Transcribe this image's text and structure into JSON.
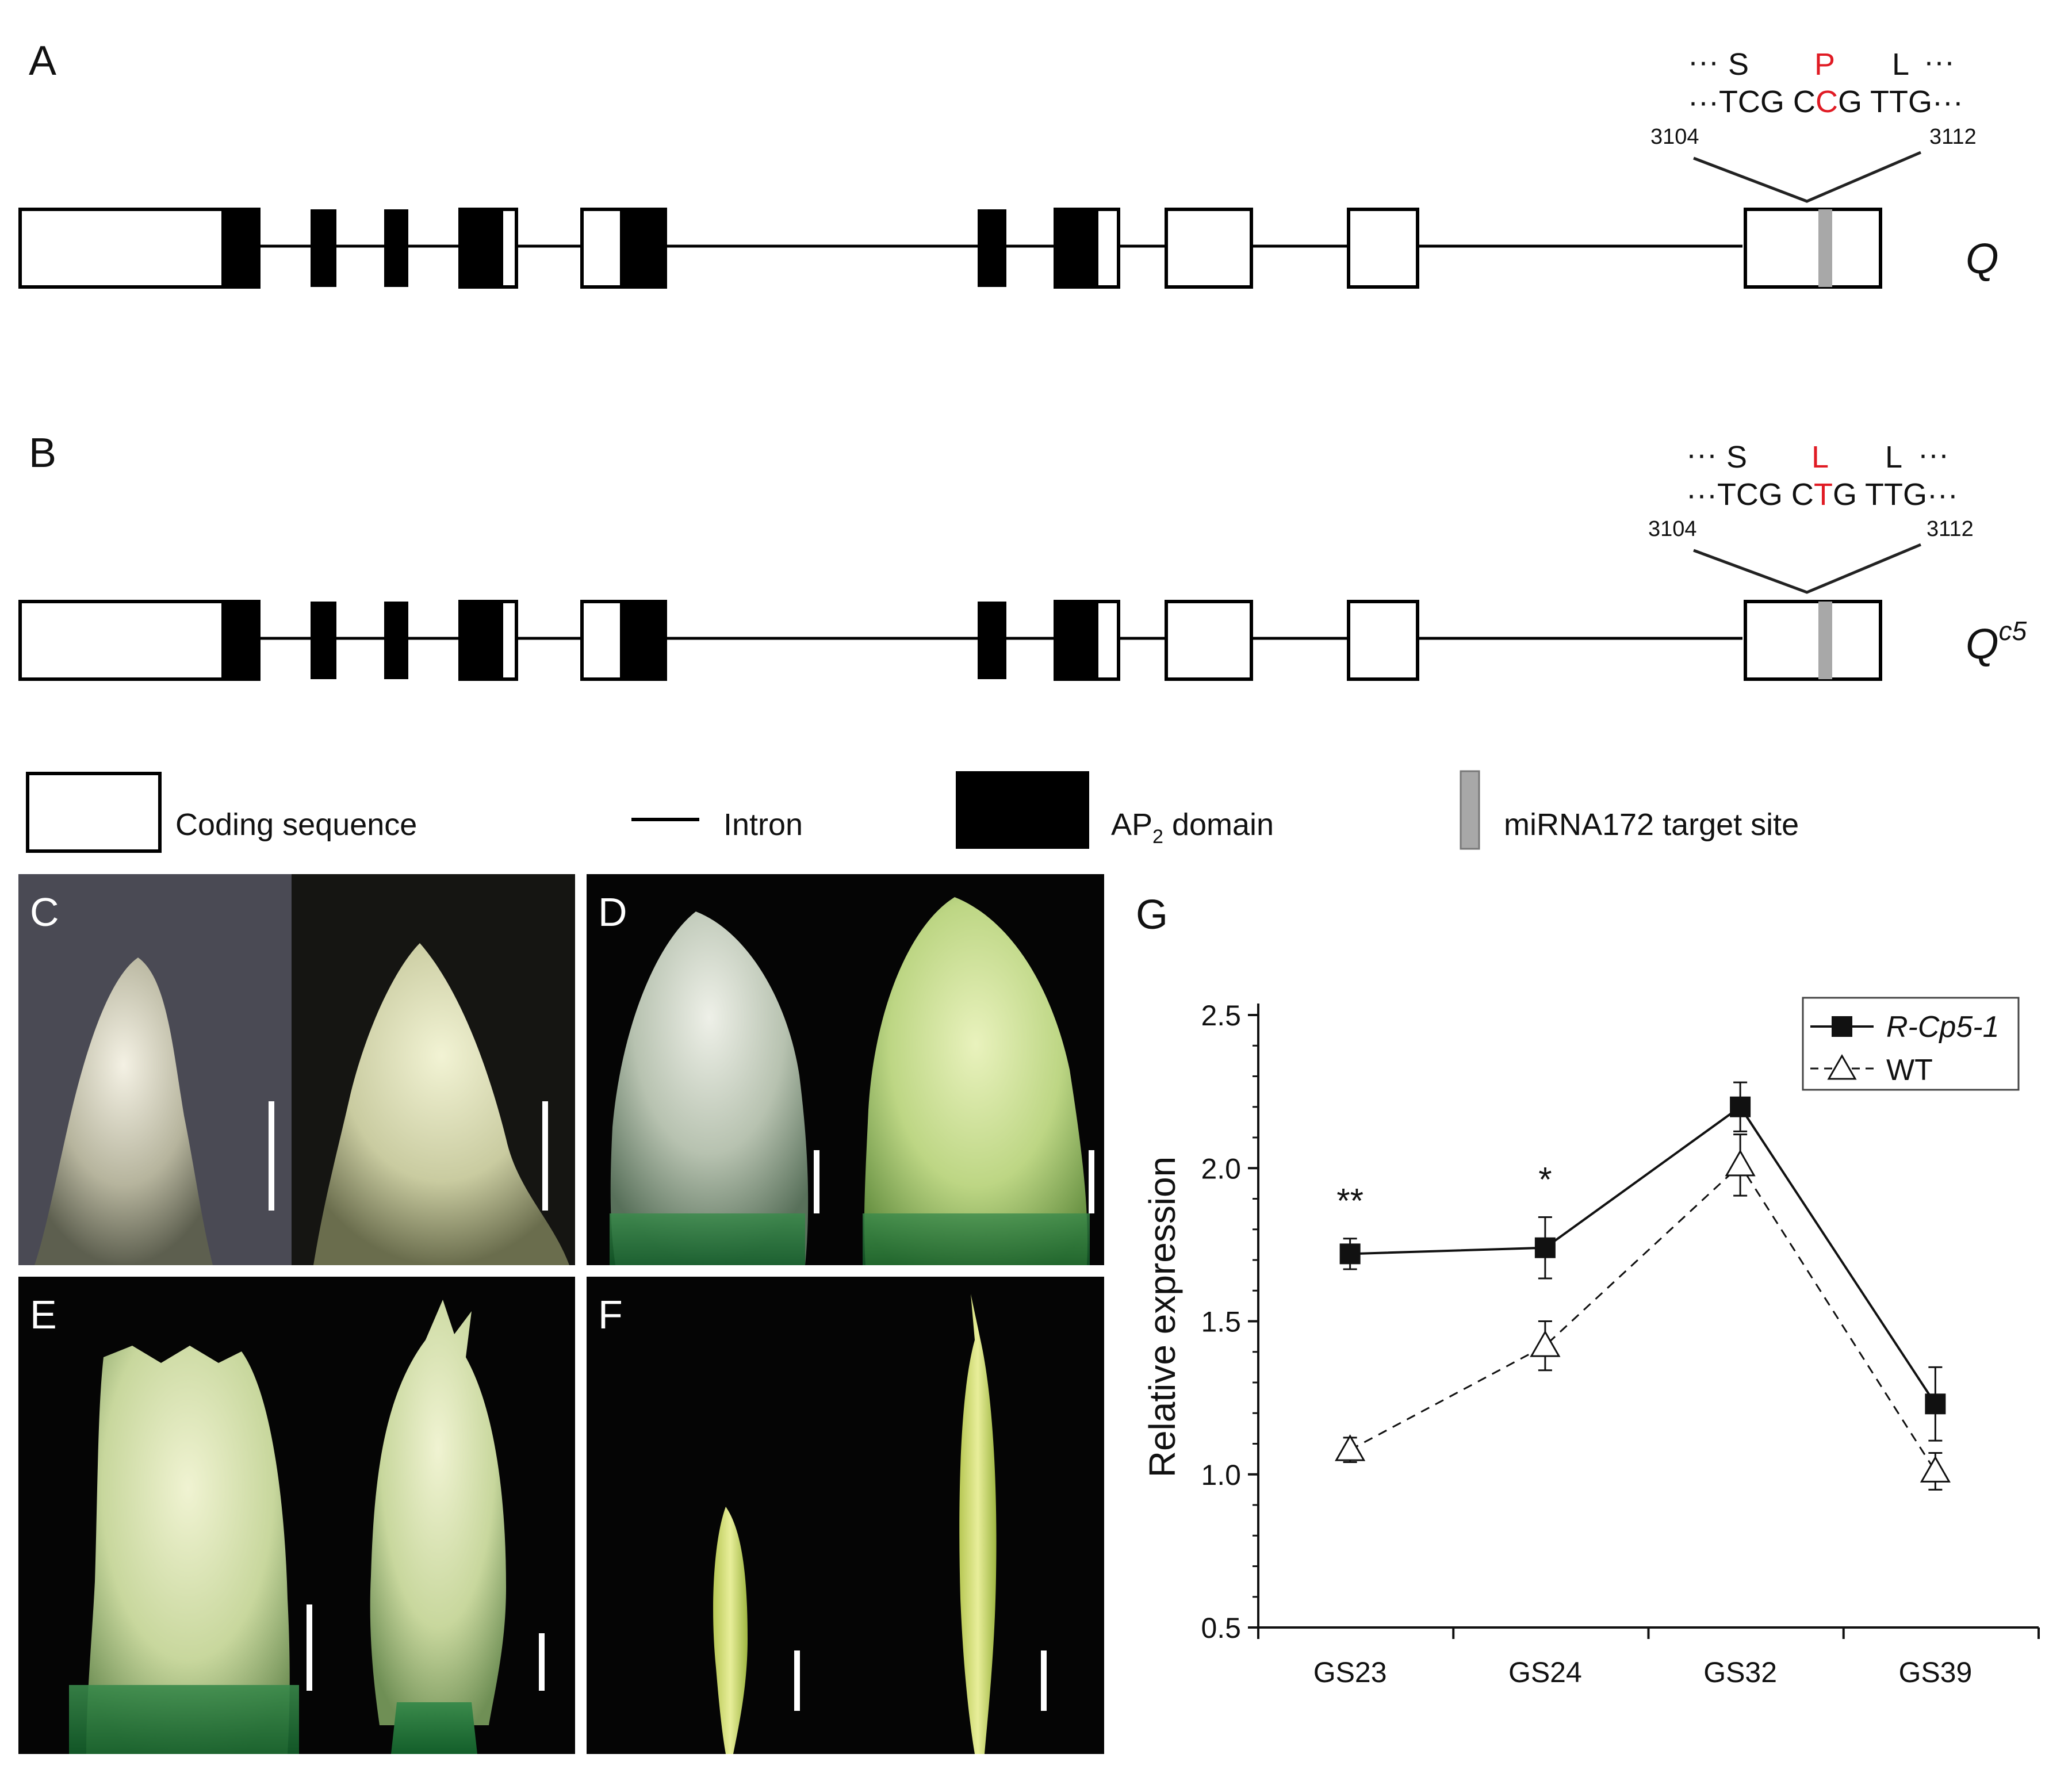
{
  "panels": {
    "A": {
      "label": "A",
      "gene_label": "Q",
      "aa": {
        "left": "···",
        "s": "S",
        "mut": "P",
        "l": "L",
        "right": "···"
      },
      "seq": {
        "lead": "···TCG C",
        "mut": "C",
        "trail": "G TTG···"
      },
      "pos_start": "3104",
      "pos_end": "3112"
    },
    "B": {
      "label": "B",
      "gene_label": "Q",
      "gene_sup": "c5",
      "aa": {
        "left": "···",
        "s": "S",
        "mut": "L",
        "l": "L",
        "right": "···"
      },
      "seq": {
        "lead": "···TCG C",
        "mut": "T",
        "trail": "G TTG···"
      },
      "pos_start": "3104",
      "pos_end": "3112"
    },
    "C": {
      "label": "C"
    },
    "D": {
      "label": "D"
    },
    "E": {
      "label": "E"
    },
    "F": {
      "label": "F"
    },
    "G": {
      "label": "G"
    }
  },
  "legend": {
    "coding": "Coding sequence",
    "intron": "Intron",
    "ap2_prefix": "AP",
    "ap2_sub": "2",
    "ap2_suffix": " domain",
    "mirna": "miRNA172 target site"
  },
  "colors": {
    "mutation": "#e01b24",
    "exon_black": "#000000",
    "target_site": "#a8a8a8",
    "photo_bg": "#050505"
  },
  "chart_data": {
    "type": "line",
    "title": "",
    "xlabel": "",
    "ylabel": "Relative expression",
    "categories": [
      "GS23",
      "GS24",
      "GS32",
      "GS39"
    ],
    "ylim": [
      0.5,
      2.5
    ],
    "yticks": [
      "0.5",
      "1.0",
      "1.5",
      "2.0",
      "2.5"
    ],
    "grid": false,
    "legend_position": "top-right",
    "series": [
      {
        "name": "R-Cp5-1",
        "marker": "filled-square",
        "line": "solid",
        "values": [
          1.72,
          1.74,
          2.2,
          1.23
        ],
        "errors": [
          0.05,
          0.1,
          0.08,
          0.12
        ]
      },
      {
        "name": "WT",
        "marker": "open-triangle",
        "line": "dashed",
        "values": [
          1.08,
          1.42,
          2.01,
          1.01
        ],
        "errors": [
          0.04,
          0.08,
          0.1,
          0.06
        ]
      }
    ],
    "annotations": [
      "**",
      "*",
      "",
      ""
    ]
  }
}
